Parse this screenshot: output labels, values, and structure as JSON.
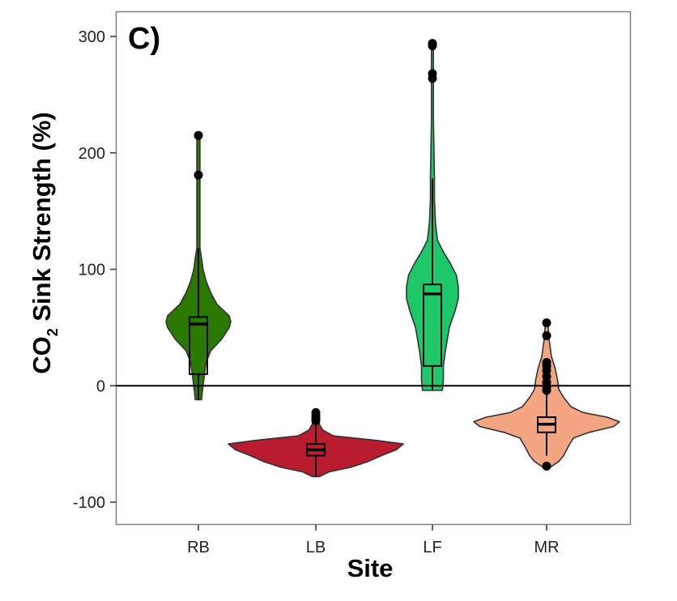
{
  "chart_data": {
    "type": "violin",
    "panel_label": "C)",
    "xlabel": "Site",
    "ylabel_main": "CO",
    "ylabel_sub": "2",
    "ylabel_rest": " Sink Strength (%)",
    "ylim": [
      -120,
      320
    ],
    "yticks": [
      -100,
      0,
      100,
      200,
      300
    ],
    "ytick_labels": [
      "-100",
      "0",
      "100",
      "200",
      "300"
    ],
    "reference_line": 0,
    "grid": false,
    "legend": "none",
    "categories": [
      "RB",
      "LB",
      "LF",
      "MR"
    ],
    "series": [
      {
        "category": "RB",
        "color": "#2a7a00",
        "min": -12,
        "max": 118,
        "q1": 10,
        "median": 53,
        "q3": 59,
        "outliers": [
          181,
          215
        ],
        "density": [
          [
            -12,
            2
          ],
          [
            0,
            3
          ],
          [
            10,
            4
          ],
          [
            20,
            5
          ],
          [
            30,
            8
          ],
          [
            40,
            15
          ],
          [
            50,
            20
          ],
          [
            55,
            21
          ],
          [
            60,
            20
          ],
          [
            70,
            12
          ],
          [
            80,
            8
          ],
          [
            90,
            5
          ],
          [
            100,
            3
          ],
          [
            110,
            2
          ],
          [
            118,
            1
          ],
          [
            150,
            1
          ],
          [
            215,
            1
          ]
        ]
      },
      {
        "category": "LB",
        "color": "#b81c2e",
        "min": -78,
        "max": -33,
        "q1": -60,
        "median": -55,
        "q3": -50,
        "outliers": [
          -30,
          -28,
          -26,
          -23
        ],
        "density": [
          [
            -78,
            4
          ],
          [
            -74,
            15
          ],
          [
            -70,
            40
          ],
          [
            -65,
            60
          ],
          [
            -60,
            75
          ],
          [
            -55,
            92
          ],
          [
            -50,
            100
          ],
          [
            -47,
            70
          ],
          [
            -43,
            20
          ],
          [
            -38,
            8
          ],
          [
            -33,
            4
          ],
          [
            -23,
            3
          ]
        ]
      },
      {
        "category": "LF",
        "color": "#1ec869",
        "min": -4,
        "max": 178,
        "q1": 17,
        "median": 79,
        "q3": 87,
        "outliers": [
          264,
          268,
          292,
          294
        ],
        "density": [
          [
            -4,
            10
          ],
          [
            5,
            11
          ],
          [
            17,
            11
          ],
          [
            30,
            13
          ],
          [
            50,
            17
          ],
          [
            65,
            23
          ],
          [
            75,
            26
          ],
          [
            85,
            26
          ],
          [
            95,
            24
          ],
          [
            105,
            18
          ],
          [
            115,
            11
          ],
          [
            125,
            5
          ],
          [
            140,
            3
          ],
          [
            160,
            2
          ],
          [
            178,
            2
          ],
          [
            230,
            1
          ],
          [
            294,
            1
          ]
        ]
      },
      {
        "category": "MR",
        "color": "#f4a582",
        "min": -60,
        "max": 20,
        "q1": -40,
        "median": -33,
        "q3": -27,
        "outliers": [
          -69,
          -4,
          -1,
          3,
          8,
          13,
          17,
          20,
          43,
          54
        ],
        "density": [
          [
            -70,
            3
          ],
          [
            -65,
            10
          ],
          [
            -60,
            14
          ],
          [
            -52,
            18
          ],
          [
            -45,
            22
          ],
          [
            -40,
            35
          ],
          [
            -35,
            55
          ],
          [
            -31,
            60
          ],
          [
            -27,
            50
          ],
          [
            -23,
            30
          ],
          [
            -18,
            20
          ],
          [
            -10,
            14
          ],
          [
            -3,
            10
          ],
          [
            5,
            9
          ],
          [
            15,
            7
          ],
          [
            25,
            4
          ],
          [
            40,
            2
          ],
          [
            54,
            1
          ]
        ]
      }
    ]
  }
}
